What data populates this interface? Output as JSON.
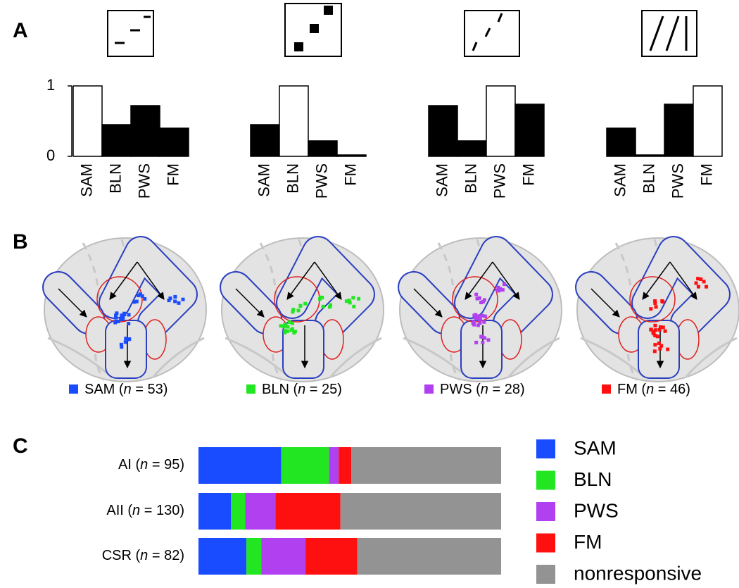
{
  "panel_labels": [
    "A",
    "B",
    "C"
  ],
  "chart_data": [
    {
      "type": "bar",
      "categories": [
        "SAM",
        "BLN",
        "PWS",
        "FM"
      ],
      "values": [
        1,
        0.45,
        0.72,
        0.4
      ],
      "colors": [
        "#ffffff",
        "#000000",
        "#000000",
        "#000000"
      ],
      "ylim": [
        0,
        1
      ],
      "yticks": [
        0,
        1
      ]
    },
    {
      "type": "bar",
      "categories": [
        "SAM",
        "BLN",
        "PWS",
        "FM"
      ],
      "values": [
        0.45,
        1,
        0.22,
        0.02
      ],
      "colors": [
        "#000000",
        "#ffffff",
        "#000000",
        "#000000"
      ],
      "ylim": [
        0,
        1
      ]
    },
    {
      "type": "bar",
      "categories": [
        "SAM",
        "BLN",
        "PWS",
        "FM"
      ],
      "values": [
        0.72,
        0.22,
        1,
        0.74
      ],
      "colors": [
        "#000000",
        "#000000",
        "#ffffff",
        "#000000"
      ],
      "ylim": [
        0,
        1
      ]
    },
    {
      "type": "bar",
      "categories": [
        "SAM",
        "BLN",
        "PWS",
        "FM"
      ],
      "values": [
        0.4,
        0.02,
        0.74,
        1
      ],
      "colors": [
        "#000000",
        "#000000",
        "#000000",
        "#ffffff"
      ],
      "ylim": [
        0,
        1
      ]
    },
    {
      "type": "brain_map",
      "series": [
        {
          "label": "SAM (n = 53)",
          "color": "#1a4cff"
        },
        {
          "label": "BLN (n = 25)",
          "color": "#22e622"
        },
        {
          "label": "PWS (n = 28)",
          "color": "#b040f0"
        },
        {
          "label": "FM (n = 46)",
          "color": "#ff1010"
        }
      ]
    },
    {
      "type": "stacked_bar",
      "categories": [
        "AI (n = 95)",
        "AII (n = 130)",
        "CSR (n = 82)"
      ],
      "series": [
        {
          "name": "SAM",
          "color": "#1a4cff",
          "values": [
            26,
            14,
            13
          ]
        },
        {
          "name": "BLN",
          "color": "#22e622",
          "values": [
            15,
            6,
            4
          ]
        },
        {
          "name": "PWS",
          "color": "#b040f0",
          "values": [
            3,
            13,
            12
          ]
        },
        {
          "name": "FM",
          "color": "#ff1010",
          "values": [
            4,
            28,
            14
          ]
        },
        {
          "name": "nonresponsive",
          "color": "#939393",
          "values": [
            47,
            69,
            39
          ]
        }
      ]
    }
  ]
}
